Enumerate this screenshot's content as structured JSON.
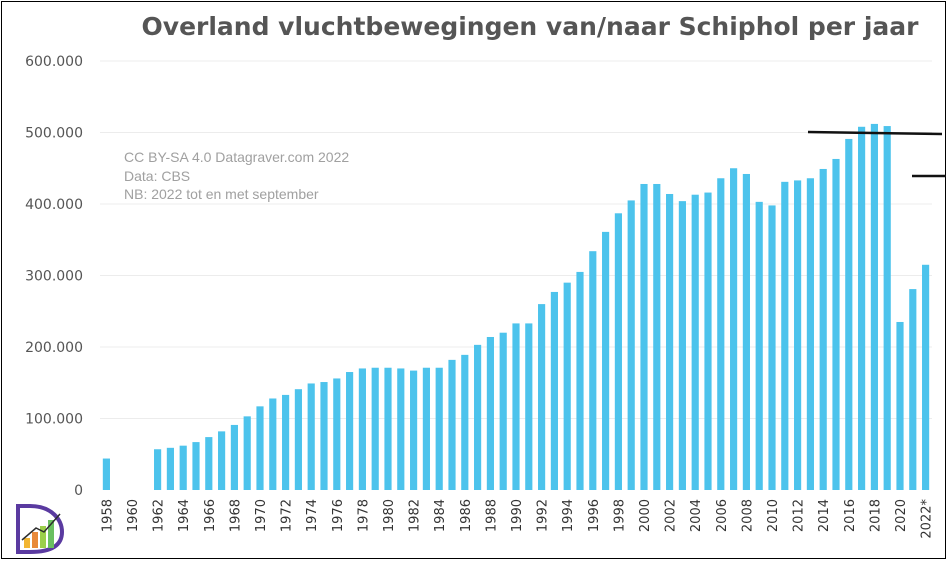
{
  "chart_data": {
    "type": "bar",
    "title": "Overland vluchtbewegingen van/naar Schiphol per jaar",
    "xlabel": "",
    "ylabel": "",
    "ylim": [
      0,
      600000
    ],
    "yticks": [
      0,
      100000,
      200000,
      300000,
      400000,
      500000,
      600000
    ],
    "ytick_labels": [
      "0",
      "100.000",
      "200.000",
      "300.000",
      "400.000",
      "500.000",
      "600.000"
    ],
    "grid": true,
    "bar_color": "#4cc3ec",
    "categories": [
      "1958",
      "1959",
      "1960",
      "1961",
      "1962",
      "1963",
      "1964",
      "1965",
      "1966",
      "1967",
      "1968",
      "1969",
      "1970",
      "1971",
      "1972",
      "1973",
      "1974",
      "1975",
      "1976",
      "1977",
      "1978",
      "1979",
      "1980",
      "1981",
      "1982",
      "1983",
      "1984",
      "1985",
      "1986",
      "1987",
      "1988",
      "1989",
      "1990",
      "1991",
      "1992",
      "1993",
      "1994",
      "1995",
      "1996",
      "1997",
      "1998",
      "1999",
      "2000",
      "2001",
      "2002",
      "2003",
      "2004",
      "2005",
      "2006",
      "2007",
      "2008",
      "2009",
      "2010",
      "2011",
      "2012",
      "2013",
      "2014",
      "2015",
      "2016",
      "2017",
      "2018",
      "2019",
      "2020",
      "2021",
      "2022*"
    ],
    "xtick_labels": [
      "1958",
      "1960",
      "1962",
      "1964",
      "1966",
      "1968",
      "1970",
      "1972",
      "1974",
      "1976",
      "1978",
      "1980",
      "1982",
      "1984",
      "1986",
      "1988",
      "1990",
      "1992",
      "1994",
      "1996",
      "1998",
      "2000",
      "2002",
      "2004",
      "2006",
      "2008",
      "2010",
      "2012",
      "2014",
      "2016",
      "2018",
      "2020",
      "2022*"
    ],
    "values": [
      44000,
      0,
      0,
      0,
      57000,
      59000,
      62000,
      67000,
      74000,
      82000,
      91000,
      103000,
      117000,
      128000,
      133000,
      141000,
      149000,
      151000,
      156000,
      165000,
      170000,
      171000,
      171000,
      170000,
      167000,
      171000,
      171000,
      182000,
      189000,
      203000,
      214000,
      220000,
      233000,
      233000,
      260000,
      277000,
      290000,
      305000,
      334000,
      361000,
      387000,
      405000,
      428000,
      428000,
      414000,
      404000,
      413000,
      416000,
      436000,
      450000,
      442000,
      403000,
      398000,
      431000,
      433000,
      436000,
      449000,
      463000,
      491000,
      508000,
      512000,
      509000,
      235000,
      281000,
      315000
    ],
    "annotations": [
      "CC BY-SA 4.0 Datagraver.com 2022",
      "Data: CBS",
      "NB: 2022 tot en met september"
    ]
  }
}
